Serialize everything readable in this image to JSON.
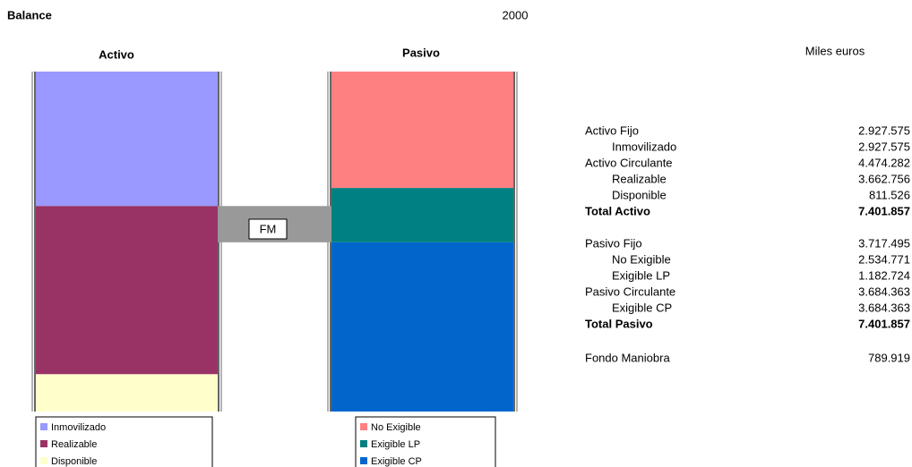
{
  "title": "Balance",
  "year": "2000",
  "unit": "Miles euros",
  "fm_label": "FM",
  "chart_data": [
    {
      "type": "stacked_bar",
      "title": "Activo",
      "ylim": [
        0,
        7401857
      ],
      "series": [
        {
          "name": "Inmovilizado",
          "color": "#9999ff",
          "values": [
            2927575
          ]
        },
        {
          "name": "Realizable",
          "color": "#993366",
          "values": [
            3662756
          ]
        },
        {
          "name": "Disponible",
          "color": "#ffffcc",
          "values": [
            811526
          ]
        }
      ]
    },
    {
      "type": "stacked_bar",
      "title": "Pasivo",
      "ylim": [
        0,
        7401857
      ],
      "series": [
        {
          "name": "No Exigible",
          "color": "#ff8080",
          "values": [
            2534771
          ]
        },
        {
          "name": "Exigible LP",
          "color": "#008080",
          "values": [
            1182724
          ]
        },
        {
          "name": "Exigible CP",
          "color": "#0066cc",
          "values": [
            3684363
          ]
        }
      ]
    }
  ],
  "table": {
    "rows": [
      [
        "Activo Fijo",
        "2.927.575"
      ],
      [
        "Inmovilizado",
        "2.927.575"
      ],
      [
        "Activo Circulante",
        "4.474.282"
      ],
      [
        "Realizable",
        "3.662.756"
      ],
      [
        "Disponible",
        "811.526"
      ],
      [
        "Total Activo",
        "7.401.857"
      ],
      [
        "Pasivo Fijo",
        "3.717.495"
      ],
      [
        "No Exigible",
        "2.534.771"
      ],
      [
        "Exigible LP",
        "1.182.724"
      ],
      [
        "Pasivo Circulante",
        "3.684.363"
      ],
      [
        "Exigible CP",
        "3.684.363"
      ],
      [
        "Total Pasivo",
        "7.401.857"
      ],
      [
        "Fondo Maniobra",
        "789.919"
      ]
    ]
  }
}
